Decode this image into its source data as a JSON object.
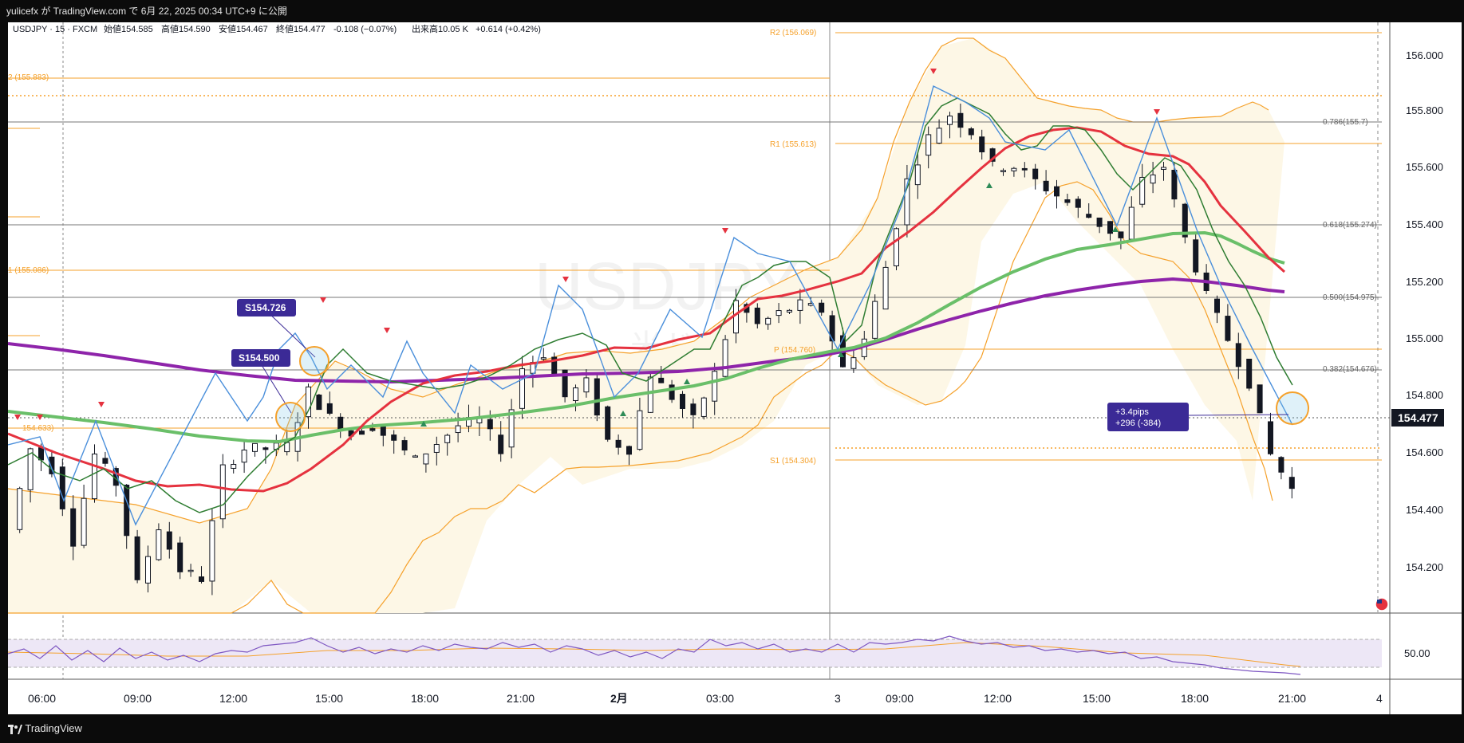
{
  "header": {
    "publish_text": "yulicefx が TradingView.com で 6月 22, 2025 00:34 UTC+9 に公開"
  },
  "legend": {
    "symbol": "USDJPY · 15 · FXCM",
    "open": "始値154.585",
    "high": "高値154.590",
    "low": "安値154.467",
    "close": "終値154.477",
    "change": "-0.108 (−0.07%)",
    "volume": "出来高10.05 K",
    "vol_change": "+0.614 (+0.42%)"
  },
  "watermark": {
    "symbol": "USDJPY, 15",
    "sub": "米ドル / 円"
  },
  "pivots": {
    "R2": "R2 (156.069)",
    "R1": "R1 (155.613)",
    "P": "P (154.760)",
    "S1": "S1 (154.304)",
    "prev_R2": "2 (155.883)",
    "prev_R1": "1 (155.086)",
    "prev_P": "154.633)"
  },
  "fibonacci": {
    "f786": "0.786(155.7)",
    "f618": "0.618(155.274)",
    "f500": "0.500(154.975)",
    "f382": "0.382(154.676)"
  },
  "callouts": {
    "c1": "S154.726",
    "c2": "S154.500",
    "pips_line1": "+3.4pips",
    "pips_line2": "+296  (-384)"
  },
  "price_axis": {
    "labels": [
      "156.000",
      "155.800",
      "155.600",
      "155.400",
      "155.200",
      "155.000",
      "154.800",
      "154.600",
      "154.400",
      "154.200"
    ],
    "current": "154.477",
    "rsi_label": "50.00"
  },
  "time_axis": {
    "labels": [
      "06:00",
      "09:00",
      "12:00",
      "15:00",
      "18:00",
      "21:00",
      "2月",
      "03:00",
      "3",
      "09:00",
      "12:00",
      "15:00",
      "18:00",
      "21:00",
      "4"
    ]
  },
  "footer": {
    "brand": "TradingView"
  },
  "colors": {
    "ma_red": "#e5323f",
    "ma_green": "#6abf69",
    "ma_purple": "#8e24aa",
    "bollinger": "#f5a12b",
    "zigzag": "#4a8fdb",
    "pivot": "#f5a12b",
    "callout_bg": "#3b2a96",
    "rsi_line": "#7e57c2",
    "rsi_fill": "#ede7f6"
  },
  "chart_data": {
    "type": "candlestick",
    "symbol": "USDJPY",
    "timeframe": "15",
    "ylim": [
      154.05,
      156.1
    ],
    "price_ticks": [
      156.0,
      155.8,
      155.6,
      155.4,
      155.2,
      155.0,
      154.8,
      154.6,
      154.4,
      154.2
    ],
    "levels": {
      "R2": 156.069,
      "R1": 155.613,
      "P": 154.76,
      "S1": 154.304,
      "prev_R2": 155.883,
      "prev_R1": 155.086,
      "prev_P": 154.633,
      "fib_786": 155.7,
      "fib_618": 155.274,
      "fib_500": 154.975,
      "fib_382": 154.676,
      "current": 154.477
    },
    "close_path": [
      154.34,
      154.62,
      154.55,
      154.3,
      154.6,
      154.5,
      154.15,
      154.35,
      154.2,
      154.17,
      154.55,
      154.62,
      154.62,
      154.63,
      154.82,
      154.73,
      154.67,
      154.7,
      154.64,
      154.58,
      154.64,
      154.7,
      154.72,
      154.62,
      154.9,
      154.95,
      154.8,
      154.85,
      154.65,
      154.62,
      154.88,
      154.8,
      154.72,
      154.88,
      155.13,
      155.05,
      155.09,
      155.12,
      155.1,
      154.9,
      155.0,
      155.25,
      155.55,
      155.7,
      155.78,
      155.72,
      155.6,
      155.6,
      155.55,
      155.5,
      155.45,
      155.4,
      155.35,
      155.55,
      155.6,
      155.35,
      155.15,
      155.0,
      154.85,
      154.6,
      154.48
    ]
  }
}
